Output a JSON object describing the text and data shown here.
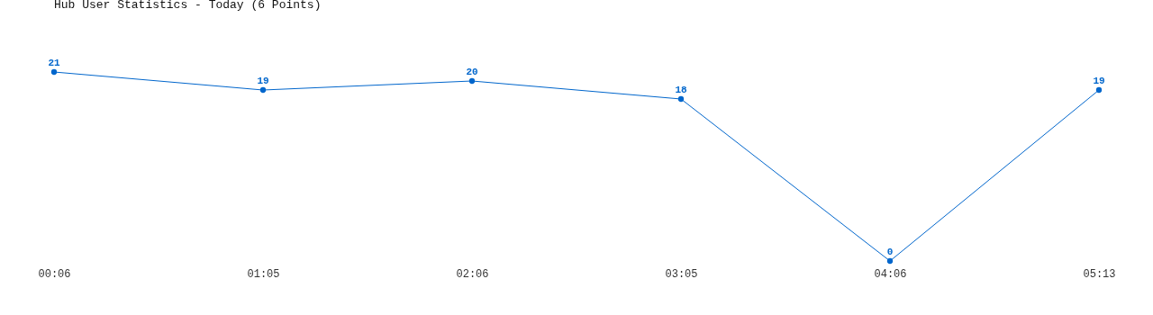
{
  "chart_data": {
    "type": "line",
    "title": "Hub User Statistics - Today (6 Points)",
    "categories": [
      "00:06",
      "01:05",
      "02:06",
      "03:05",
      "04:06",
      "05:13"
    ],
    "series": [
      {
        "color": "#0066cc",
        "values": [
          21,
          19,
          20,
          18,
          0,
          19
        ]
      }
    ],
    "data_labels": true,
    "marker": "circle",
    "tick_labels": "x"
  }
}
